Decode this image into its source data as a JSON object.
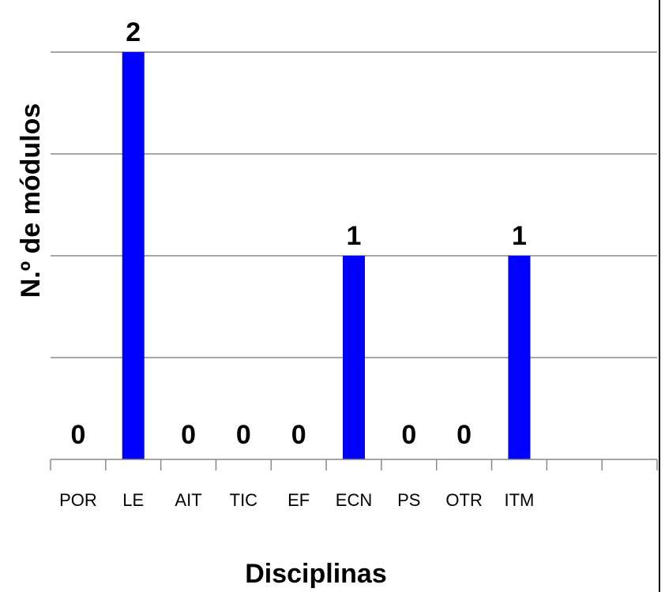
{
  "chart_data": {
    "type": "bar",
    "categories": [
      "POR",
      "LE",
      "AIT",
      "TIC",
      "EF",
      "ECN",
      "PS",
      "OTR",
      "ITM",
      "",
      ""
    ],
    "values": [
      0,
      2,
      0,
      0,
      0,
      1,
      0,
      0,
      1,
      null,
      null
    ],
    "data_labels": [
      "0",
      "2",
      "0",
      "0",
      "0",
      "1",
      "0",
      "0",
      "1",
      "",
      ""
    ],
    "xlabel": "Disciplinas",
    "ylabel": "N.º de módulos",
    "ylim": [
      0,
      2
    ],
    "y_gridline_step": 0.5,
    "grid": true,
    "show_y_tick_labels": false,
    "bar_color": "#0000FF",
    "grid_color": "#888888",
    "axis_color": "#888888",
    "frame_color": "#000000"
  }
}
